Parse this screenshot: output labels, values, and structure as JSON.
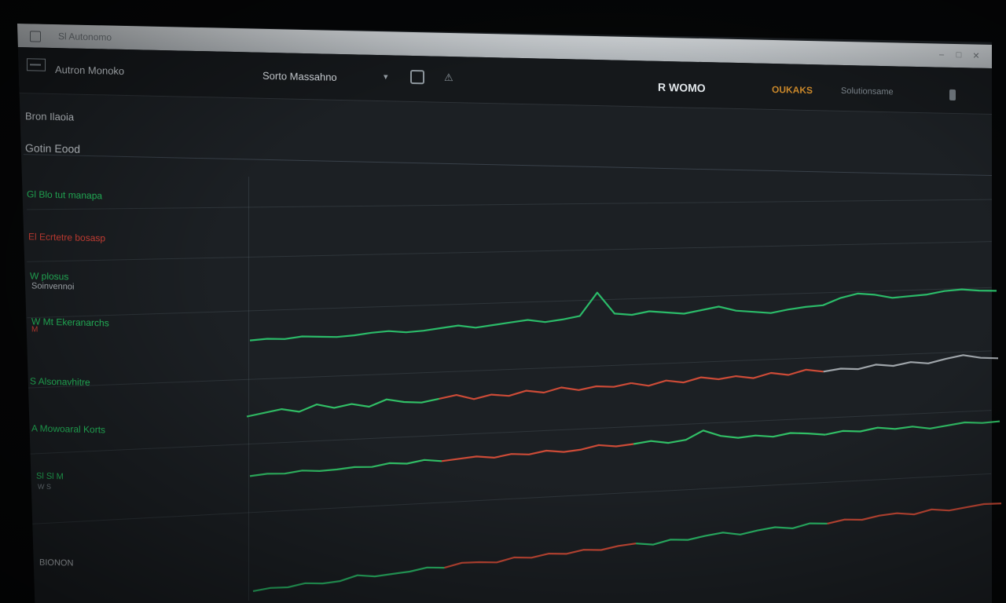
{
  "window": {
    "title": "Sl Autonomo",
    "controls": [
      "–",
      "□",
      "✕"
    ]
  },
  "toolbar": {
    "brand": "Autron Monoko",
    "dropdown_value": "Sorto Massahno",
    "status_left": "R WOMO",
    "status_warning": "OUKAKS",
    "status_right": "Solutionsame",
    "icons": [
      "pause-icon",
      "alert-icon",
      "more-icon"
    ]
  },
  "sidebar": {
    "item_top": "Bron Ilaoia",
    "section_header": "Gotin Eood",
    "items": [
      {
        "label": "Gl Blo tut manapa",
        "color": "#27c863"
      },
      {
        "label": "El Ecrtetre bosasp",
        "color": "#e0453a"
      },
      {
        "label": "W plosus",
        "sub": "Soinvennoi",
        "color": "#27c863"
      },
      {
        "label": "W Mt Ekeranarchs",
        "sub": "M",
        "color": "#27c863"
      },
      {
        "label": "S Alsonavhitre",
        "color": "#27c863"
      },
      {
        "label": "A Mowoaral Korts",
        "color": "#27c863"
      },
      {
        "label": "Sl Sl M",
        "sub": "W S",
        "color": "#27c863"
      },
      {
        "label": "Sl Sl M",
        "sub": "",
        "color": "#c8ced3"
      },
      {
        "label": "BIONON",
        "color": "#c8ced3"
      }
    ]
  },
  "chart_data": {
    "type": "line",
    "series": [
      {
        "values": [
          2,
          3,
          2,
          4,
          3,
          2,
          3,
          5,
          6,
          4,
          5,
          7,
          9,
          6,
          8,
          10,
          12,
          9,
          11,
          14,
          38,
          15,
          13,
          16,
          14,
          12,
          15,
          18,
          13,
          11,
          9,
          12,
          14,
          15,
          22,
          26,
          24,
          20,
          21,
          22,
          25,
          26,
          24,
          23
        ]
      },
      {
        "values": [
          6,
          10,
          14,
          9,
          18,
          12,
          16,
          11,
          20,
          15,
          13,
          17,
          21,
          14,
          19,
          16,
          22,
          18,
          24,
          19,
          23,
          21,
          25,
          20,
          26,
          22,
          28,
          24,
          27,
          23,
          29,
          25,
          31,
          27,
          30,
          28,
          33,
          30,
          34,
          31,
          36,
          40,
          35,
          33
        ]
      },
      {
        "values": [
          4,
          6,
          5,
          8,
          6,
          7,
          9,
          8,
          12,
          10,
          14,
          11,
          13,
          15,
          12,
          16,
          14,
          18,
          15,
          17,
          22,
          19,
          21,
          24,
          20,
          23,
          35,
          26,
          22,
          24,
          21,
          25,
          23,
          20,
          24,
          22,
          26,
          23,
          25,
          21,
          24,
          27,
          25,
          26
        ]
      },
      {
        "values": [
          1,
          3,
          2,
          5,
          3,
          4,
          9,
          6,
          7,
          8,
          11,
          9,
          13,
          12,
          10,
          14,
          12,
          15,
          13,
          16,
          14,
          17,
          18,
          15,
          19,
          17,
          20,
          22,
          18,
          21,
          23,
          20,
          24,
          22,
          25,
          23,
          26,
          27,
          24,
          28,
          25,
          27,
          29,
          28
        ]
      }
    ]
  }
}
